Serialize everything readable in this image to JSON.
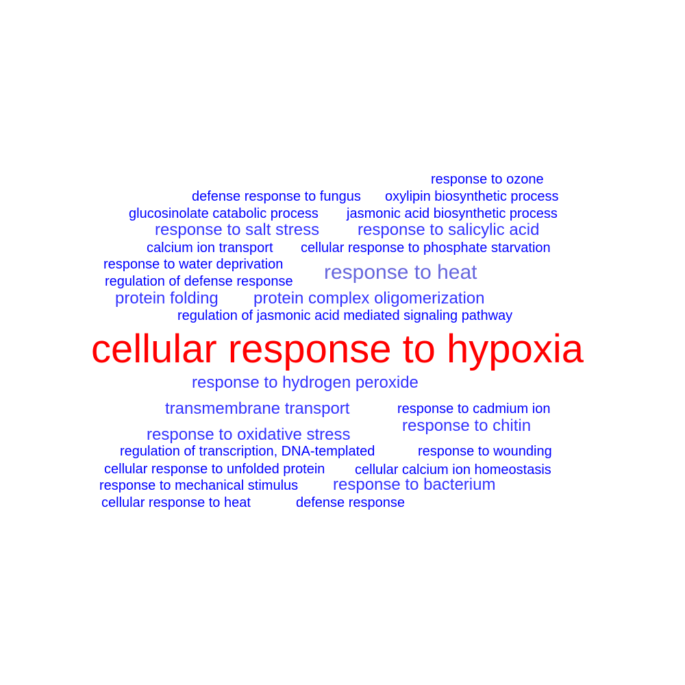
{
  "colors": {
    "highlight": "#ff0000",
    "strong": "#0000ff",
    "medium": "#3333ff",
    "light": "#6666dd"
  },
  "words": [
    {
      "text": "response to ozone",
      "color": "#0000ff"
    },
    {
      "text": "defense response to fungus",
      "color": "#0000ff"
    },
    {
      "text": "oxylipin biosynthetic process",
      "color": "#0000ff"
    },
    {
      "text": "glucosinolate catabolic process",
      "color": "#0000ff"
    },
    {
      "text": "jasmonic acid biosynthetic process",
      "color": "#0000ff"
    },
    {
      "text": "response to salt stress",
      "color": "#3333ff"
    },
    {
      "text": "response to salicylic acid",
      "color": "#3333ff"
    },
    {
      "text": "calcium ion transport",
      "color": "#0000ff"
    },
    {
      "text": "cellular response to phosphate starvation",
      "color": "#0000ff"
    },
    {
      "text": "response to water deprivation",
      "color": "#0000ff"
    },
    {
      "text": "response to heat",
      "color": "#6666dd"
    },
    {
      "text": "regulation of defense response",
      "color": "#0000ff"
    },
    {
      "text": "protein folding",
      "color": "#3333ff"
    },
    {
      "text": "protein complex oligomerization",
      "color": "#3333ff"
    },
    {
      "text": "regulation of jasmonic acid mediated signaling pathway",
      "color": "#0000ff"
    },
    {
      "text": "cellular response to hypoxia",
      "color": "#ff0000"
    },
    {
      "text": "response to hydrogen peroxide",
      "color": "#3333ff"
    },
    {
      "text": "transmembrane transport",
      "color": "#3333ff"
    },
    {
      "text": "response to cadmium ion",
      "color": "#0000ff"
    },
    {
      "text": "response to oxidative stress",
      "color": "#3333ff"
    },
    {
      "text": "response to chitin",
      "color": "#3333ff"
    },
    {
      "text": "regulation of transcription, DNA-templated",
      "color": "#0000ff"
    },
    {
      "text": "response to wounding",
      "color": "#0000ff"
    },
    {
      "text": "cellular response to unfolded protein",
      "color": "#0000ff"
    },
    {
      "text": "cellular calcium ion homeostasis",
      "color": "#0000ff"
    },
    {
      "text": "response to mechanical stimulus",
      "color": "#0000ff"
    },
    {
      "text": "response to bacterium",
      "color": "#3333ff"
    },
    {
      "text": "cellular response to heat",
      "color": "#0000ff"
    },
    {
      "text": "defense response",
      "color": "#0000ff"
    }
  ]
}
